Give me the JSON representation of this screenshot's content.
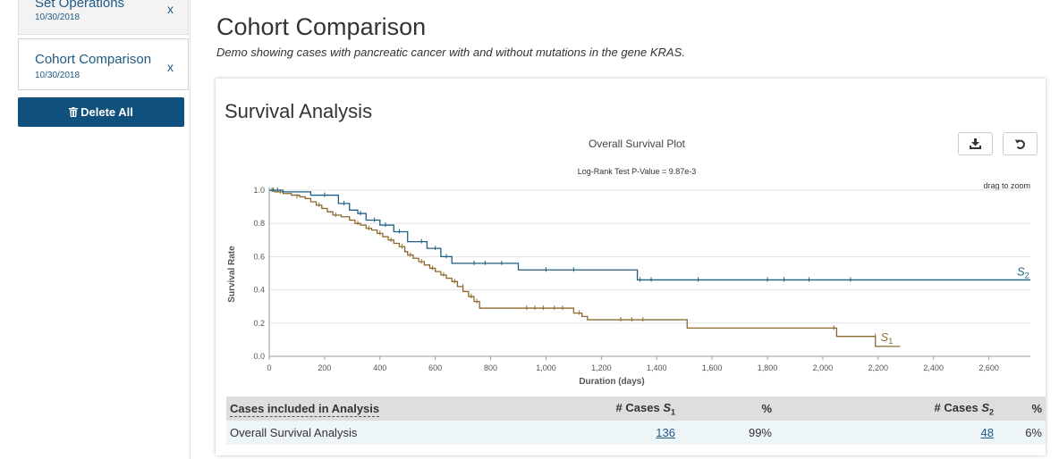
{
  "sidebar": {
    "sets": [
      {
        "title": "Set Operations",
        "date": "10/30/2018",
        "close": "x"
      },
      {
        "title": "Cohort Comparison",
        "date": "10/30/2018",
        "close": "x"
      }
    ],
    "delete_all_label": "Delete All"
  },
  "header": {
    "title": "Cohort Comparison",
    "description": "Demo showing cases with pancreatic cancer with and without mutations in the gene KRAS."
  },
  "panel": {
    "title": "Survival Analysis",
    "download_icon": "download-icon",
    "reset_icon": "reset-icon",
    "colors": {
      "s1": "#8a6a2d",
      "s2": "#1d5f80"
    }
  },
  "chart_data": {
    "type": "line",
    "step": true,
    "title": "Overall Survival Plot",
    "subtitle": "Log-Rank Test P-Value = 9.87e-3",
    "hint": "drag to zoom",
    "xlabel": "Duration (days)",
    "ylabel": "Survival Rate",
    "xlim": [
      0,
      2750
    ],
    "ylim": [
      0,
      1
    ],
    "xticks": [
      0,
      200,
      400,
      600,
      800,
      1000,
      1200,
      1400,
      1600,
      1800,
      2000,
      2200,
      2400,
      2600
    ],
    "xtick_labels": [
      "0",
      "200",
      "400",
      "600",
      "800",
      "1,000",
      "1,200",
      "1,400",
      "1,600",
      "1,800",
      "2,000",
      "2,200",
      "2,400",
      "2,600"
    ],
    "yticks": [
      0,
      0.2,
      0.4,
      0.6,
      0.8,
      1.0
    ],
    "ytick_labels": [
      "0.0",
      "0.2",
      "0.4",
      "0.6",
      "0.8",
      "1.0"
    ],
    "grid": true,
    "series": [
      {
        "name": "S",
        "subscript": "1",
        "color": "#8a6a2d",
        "points": [
          [
            0,
            1.0
          ],
          [
            20,
            0.99
          ],
          [
            50,
            0.98
          ],
          [
            80,
            0.97
          ],
          [
            110,
            0.96
          ],
          [
            130,
            0.95
          ],
          [
            150,
            0.93
          ],
          [
            170,
            0.91
          ],
          [
            190,
            0.89
          ],
          [
            210,
            0.87
          ],
          [
            230,
            0.85
          ],
          [
            260,
            0.84
          ],
          [
            290,
            0.82
          ],
          [
            310,
            0.8
          ],
          [
            330,
            0.79
          ],
          [
            350,
            0.77
          ],
          [
            370,
            0.76
          ],
          [
            390,
            0.74
          ],
          [
            410,
            0.72
          ],
          [
            430,
            0.7
          ],
          [
            450,
            0.68
          ],
          [
            470,
            0.66
          ],
          [
            490,
            0.63
          ],
          [
            500,
            0.61
          ],
          [
            520,
            0.59
          ],
          [
            540,
            0.57
          ],
          [
            560,
            0.55
          ],
          [
            580,
            0.53
          ],
          [
            600,
            0.51
          ],
          [
            620,
            0.49
          ],
          [
            640,
            0.47
          ],
          [
            660,
            0.45
          ],
          [
            680,
            0.42
          ],
          [
            700,
            0.39
          ],
          [
            720,
            0.36
          ],
          [
            740,
            0.33
          ],
          [
            760,
            0.29
          ],
          [
            1100,
            0.26
          ],
          [
            1130,
            0.24
          ],
          [
            1150,
            0.22
          ],
          [
            1510,
            0.17
          ],
          [
            2050,
            0.12
          ],
          [
            2190,
            0.06
          ],
          [
            2280,
            0.06
          ]
        ],
        "censors": [
          [
            15,
            1.0
          ],
          [
            40,
            0.99
          ],
          [
            100,
            0.96
          ],
          [
            180,
            0.91
          ],
          [
            240,
            0.85
          ],
          [
            320,
            0.8
          ],
          [
            360,
            0.77
          ],
          [
            400,
            0.74
          ],
          [
            440,
            0.7
          ],
          [
            480,
            0.66
          ],
          [
            510,
            0.61
          ],
          [
            550,
            0.57
          ],
          [
            590,
            0.53
          ],
          [
            630,
            0.49
          ],
          [
            670,
            0.45
          ],
          [
            700,
            0.42
          ],
          [
            730,
            0.36
          ],
          [
            750,
            0.33
          ],
          [
            930,
            0.29
          ],
          [
            960,
            0.29
          ],
          [
            990,
            0.29
          ],
          [
            1030,
            0.29
          ],
          [
            1060,
            0.29
          ],
          [
            1120,
            0.26
          ],
          [
            1270,
            0.22
          ],
          [
            1310,
            0.22
          ],
          [
            1350,
            0.22
          ],
          [
            2040,
            0.17
          ],
          [
            2190,
            0.12
          ]
        ]
      },
      {
        "name": "S",
        "subscript": "2",
        "color": "#1d5f80",
        "points": [
          [
            0,
            1.0
          ],
          [
            50,
            0.99
          ],
          [
            150,
            0.97
          ],
          [
            250,
            0.92
          ],
          [
            290,
            0.88
          ],
          [
            320,
            0.86
          ],
          [
            350,
            0.82
          ],
          [
            400,
            0.79
          ],
          [
            450,
            0.75
          ],
          [
            500,
            0.69
          ],
          [
            570,
            0.65
          ],
          [
            620,
            0.6
          ],
          [
            660,
            0.56
          ],
          [
            900,
            0.52
          ],
          [
            1330,
            0.46
          ],
          [
            2750,
            0.46
          ]
        ],
        "censors": [
          [
            10,
            1.0
          ],
          [
            30,
            1.0
          ],
          [
            200,
            0.97
          ],
          [
            270,
            0.92
          ],
          [
            330,
            0.86
          ],
          [
            380,
            0.82
          ],
          [
            420,
            0.79
          ],
          [
            470,
            0.75
          ],
          [
            550,
            0.69
          ],
          [
            600,
            0.65
          ],
          [
            640,
            0.6
          ],
          [
            740,
            0.56
          ],
          [
            780,
            0.56
          ],
          [
            840,
            0.56
          ],
          [
            1000,
            0.52
          ],
          [
            1100,
            0.52
          ],
          [
            1340,
            0.46
          ],
          [
            1380,
            0.46
          ],
          [
            1550,
            0.46
          ],
          [
            1800,
            0.46
          ],
          [
            1860,
            0.46
          ],
          [
            1950,
            0.46
          ],
          [
            2100,
            0.46
          ]
        ]
      }
    ]
  },
  "table": {
    "headers": {
      "label": "Cases included in Analysis",
      "cases1_prefix": "# Cases ",
      "cases1_sym": "S",
      "cases1_sub": "1",
      "pct1": "%",
      "cases2_prefix": "# Cases ",
      "cases2_sym": "S",
      "cases2_sub": "2",
      "pct2": "%"
    },
    "rows": [
      {
        "label": "Overall Survival Analysis",
        "cases1": "136",
        "pct1": "99%",
        "cases2": "48",
        "pct2": "6%"
      }
    ]
  }
}
